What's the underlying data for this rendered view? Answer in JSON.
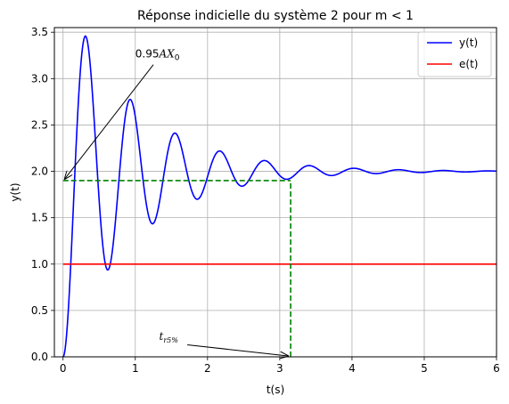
{
  "chart_data": {
    "type": "line",
    "title": "Réponse indicielle du système 2 pour m < 1",
    "xlabel": "t(s)",
    "ylabel": "y(t)",
    "xlim": [
      -0.12,
      6.0
    ],
    "ylim": [
      0.0,
      3.55
    ],
    "xticks": [
      0,
      1,
      2,
      3,
      4,
      5,
      6
    ],
    "xtick_labels": [
      "0",
      "1",
      "2",
      "3",
      "4",
      "5",
      "6"
    ],
    "yticks": [
      0.0,
      0.5,
      1.0,
      1.5,
      2.0,
      2.5,
      3.0,
      3.5
    ],
    "ytick_labels": [
      "0.0",
      "0.5",
      "1.0",
      "1.5",
      "2.0",
      "2.5",
      "3.0",
      "3.5"
    ],
    "grid": true,
    "legend_position": "top-right",
    "series": [
      {
        "name": "y(t)",
        "color": "#0000ff",
        "model": "second_order_step",
        "params": {
          "gain": 2.0,
          "zeta": 0.1,
          "wn": 10.2,
          "t_max": 6.0,
          "samples": 600
        }
      },
      {
        "name": "e(t)",
        "color": "#ff0000",
        "x": [
          0,
          6
        ],
        "y": [
          1.0,
          1.0
        ]
      }
    ],
    "reference_lines": {
      "color": "#008000",
      "horizontal": {
        "y": 1.9,
        "x_from": 0.0,
        "x_to": 3.15
      },
      "vertical": {
        "x": 3.15,
        "y_from": 0.0,
        "y_to": 1.9
      }
    },
    "annotations": [
      {
        "label_main": "0.95",
        "label_ital": "AX",
        "label_sub": "0",
        "text_x": 1.0,
        "text_y": 3.2,
        "arrow_to": [
          0.0,
          1.9
        ]
      },
      {
        "label_ital": "t",
        "label_sub": "r5%",
        "text_x": 1.33,
        "text_y": 0.2,
        "arrow_to": [
          3.15,
          0.0
        ]
      }
    ]
  }
}
